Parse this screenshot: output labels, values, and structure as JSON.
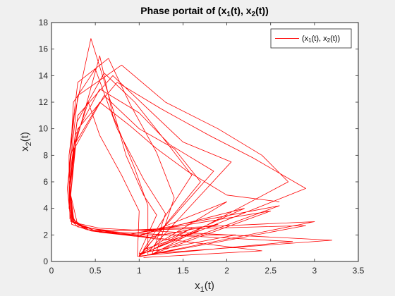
{
  "chart_data": {
    "type": "line",
    "title": "Phase portait of (x1(t), x2(t))",
    "xlabel": "x1(t)",
    "ylabel": "x2(t)",
    "xlim": [
      0,
      3.5
    ],
    "ylim": [
      0,
      18
    ],
    "xticks": [
      0,
      0.5,
      1,
      1.5,
      2,
      2.5,
      3,
      3.5
    ],
    "yticks": [
      0,
      2,
      4,
      6,
      8,
      10,
      12,
      14,
      16,
      18
    ],
    "xtick_labels": [
      "0",
      "0.5",
      "1",
      "1.5",
      "2",
      "2.5",
      "3",
      "3.5"
    ],
    "ytick_labels": [
      "0",
      "2",
      "4",
      "6",
      "8",
      "10",
      "12",
      "14",
      "16",
      "18"
    ],
    "grid": false,
    "legend": {
      "location": "top-right",
      "entries": [
        "(x1(t), x2(t))"
      ]
    },
    "series": [
      {
        "name": "(x1(t), x2(t))",
        "color": "#ff0000",
        "x": [
          1.05,
          2.4,
          0.9,
          0.45,
          0.22,
          0.18,
          0.22,
          0.42,
          0.55,
          0.8,
          1.0,
          0.98,
          2.75,
          0.8,
          0.4,
          0.23,
          0.22,
          0.28,
          0.55,
          0.7,
          0.95,
          1.1,
          1.1,
          3.0,
          0.7,
          0.3,
          0.21,
          0.2,
          0.26,
          0.45,
          0.7,
          0.85,
          1.05,
          1.2,
          1.0,
          2.1,
          1.0,
          0.5,
          0.24,
          0.2,
          0.25,
          0.5,
          0.75,
          1.05,
          1.3,
          1.15,
          3.2,
          0.55,
          0.28,
          0.2,
          0.2,
          0.3,
          0.65,
          0.9,
          1.2,
          1.4,
          1.2,
          2.6,
          0.85,
          0.4,
          0.23,
          0.21,
          0.29,
          0.6,
          0.95,
          1.25,
          1.6,
          1.05,
          1.9,
          1.1,
          0.55,
          0.26,
          0.21,
          0.27,
          0.55,
          1.0,
          1.35,
          1.85,
          1.0,
          2.2,
          0.95,
          0.45,
          0.24,
          0.21,
          0.3,
          0.7,
          1.1,
          1.5,
          2.05,
          1.1,
          1.6,
          1.3,
          0.75,
          0.3,
          0.22,
          0.26,
          0.6,
          1.0,
          1.4,
          1.7,
          1.0,
          2.9,
          0.65,
          0.35,
          0.22,
          0.2,
          0.3,
          0.8,
          1.3,
          1.9,
          2.4,
          2.7,
          1.15,
          2.5,
          0.85,
          0.42,
          0.24,
          0.21,
          0.3,
          0.75,
          1.25,
          1.8,
          2.3,
          2.9,
          1.0,
          2.0,
          1.0,
          0.5,
          0.25,
          0.21,
          0.28,
          0.55,
          0.9,
          1.2,
          1.55,
          2.0,
          2.6
        ],
        "y": [
          0.3,
          0.8,
          2.0,
          2.5,
          3.0,
          5.5,
          8.0,
          12.0,
          9.5,
          6.5,
          3.8,
          0.4,
          1.5,
          2.2,
          2.4,
          2.8,
          5.0,
          9.0,
          15.5,
          11.0,
          7.0,
          4.2,
          0.5,
          3.0,
          2.3,
          2.6,
          3.2,
          7.0,
          11.0,
          16.8,
          11.5,
          8.0,
          5.0,
          3.5,
          0.6,
          2.0,
          2.0,
          2.3,
          3.0,
          6.0,
          12.0,
          14.5,
          10.0,
          6.2,
          3.6,
          0.6,
          1.6,
          2.5,
          2.9,
          4.0,
          8.0,
          13.5,
          15.3,
          11.8,
          8.2,
          4.8,
          0.8,
          4.2,
          2.0,
          2.4,
          3.1,
          6.5,
          10.5,
          14.2,
          12.0,
          9.5,
          6.5,
          0.9,
          2.8,
          1.8,
          2.2,
          2.9,
          5.5,
          9.5,
          13.0,
          11.2,
          8.8,
          6.8,
          0.45,
          4.0,
          1.9,
          2.3,
          3.0,
          6.0,
          11.0,
          14.0,
          11.5,
          9.0,
          7.5,
          0.7,
          2.5,
          1.6,
          2.1,
          2.7,
          5.0,
          8.5,
          12.5,
          10.0,
          8.5,
          6.0,
          0.35,
          2.7,
          2.3,
          2.6,
          3.3,
          6.5,
          12.5,
          14.8,
          12.0,
          10.0,
          8.0,
          6.0,
          0.55,
          3.8,
          2.0,
          2.4,
          3.2,
          6.0,
          10.0,
          13.5,
          11.5,
          9.5,
          7.8,
          5.5,
          0.5,
          4.5,
          1.9,
          2.3,
          3.0,
          5.5,
          9.0,
          12.0,
          10.2,
          8.5,
          6.8,
          5.0,
          4.5
        ]
      }
    ]
  }
}
